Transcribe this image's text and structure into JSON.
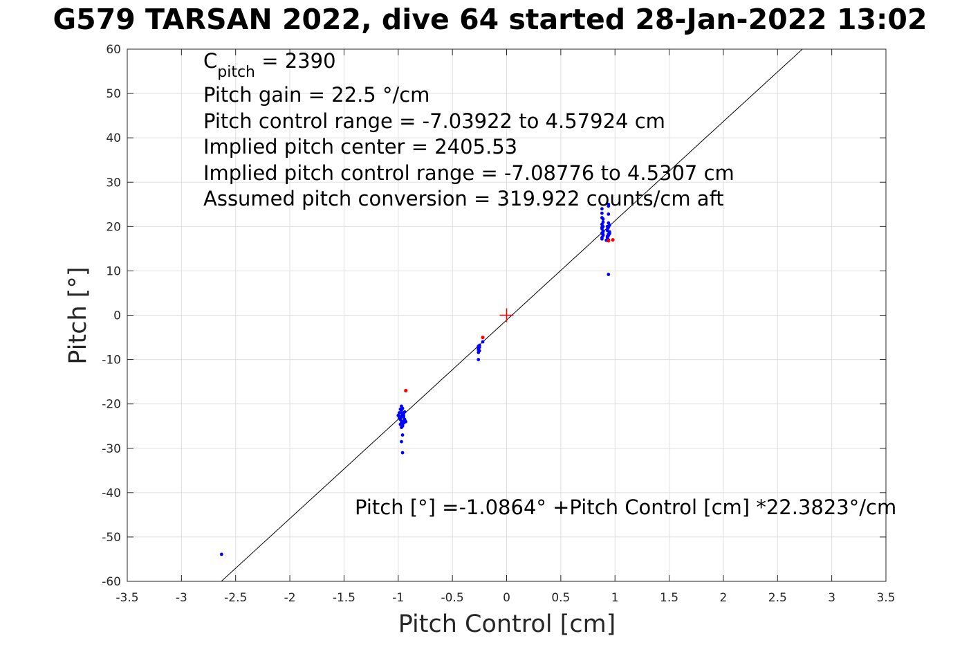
{
  "figure": {
    "title": "G579 TARSAN 2022, dive 64 started 28-Jan-2022 13:02"
  },
  "chart_data": {
    "type": "scatter",
    "title": "G579 TARSAN 2022, dive 64 started 28-Jan-2022 13:02",
    "xlabel": "Pitch Control [cm]",
    "ylabel": "Pitch [°]",
    "xlim": [
      -3.5,
      3.5
    ],
    "ylim": [
      -60,
      60
    ],
    "grid": true,
    "x_ticks": [
      -3.5,
      -3,
      -2.5,
      -2,
      -1.5,
      -1,
      -0.5,
      0,
      0.5,
      1,
      1.5,
      2,
      2.5,
      3,
      3.5
    ],
    "x_tick_labels": [
      "-3.5",
      "-3",
      "-2.5",
      "-2",
      "-1.5",
      "-1",
      "-0.5",
      "0",
      "0.5",
      "1",
      "1.5",
      "2",
      "2.5",
      "3",
      "3.5"
    ],
    "y_ticks": [
      -60,
      -50,
      -40,
      -30,
      -20,
      -10,
      0,
      10,
      20,
      30,
      40,
      50,
      60
    ],
    "y_tick_labels": [
      "-60",
      "-50",
      "-40",
      "-30",
      "-20",
      "-10",
      "0",
      "10",
      "20",
      "30",
      "40",
      "50",
      "60"
    ],
    "fit_line": {
      "intercept": -1.0864,
      "slope": 22.3823,
      "color": "#000000"
    },
    "center_marker": {
      "x": 0,
      "y": 0,
      "color": "#ff0000"
    },
    "series": [
      {
        "color": "#0000ff",
        "x": [
          -2.63,
          -0.97,
          -0.96,
          -0.95,
          -0.94,
          -0.93,
          -0.98,
          -0.99,
          -1.0,
          -0.97,
          -0.96,
          -0.95,
          -0.94,
          -0.98,
          -0.99,
          -0.96,
          -0.95,
          -0.94,
          -0.97,
          -0.98,
          -0.96,
          -0.95,
          -0.97,
          -0.96,
          -0.98,
          -0.97,
          -0.96,
          -0.97,
          -0.96,
          -0.97,
          -0.26,
          -0.26,
          -0.25,
          -0.26,
          -0.25,
          -0.26,
          -0.25,
          -0.26,
          -0.22,
          0.88,
          0.89,
          0.88,
          0.89,
          0.88,
          0.89,
          0.88,
          0.89,
          0.88,
          0.89,
          0.88,
          0.89,
          0.88,
          0.93,
          0.94,
          0.95,
          0.93,
          0.94,
          0.95,
          0.93,
          0.94,
          0.95,
          0.94,
          0.93,
          0.94,
          0.95,
          0.94,
          0.93,
          0.94,
          0.88,
          0.88,
          0.89,
          0.94,
          0.92,
          0.94
        ],
        "y": [
          -53.9,
          -22.0,
          -22.5,
          -23.0,
          -23.5,
          -24.0,
          -22.8,
          -23.2,
          -22.6,
          -21.5,
          -21.0,
          -24.3,
          -23.8,
          -24.6,
          -22.0,
          -25.0,
          -22.7,
          -21.8,
          -20.5,
          -23.5,
          -24.8,
          -22.2,
          -25.3,
          -23.9,
          -21.2,
          -22.9,
          -27.0,
          -28.5,
          -31.0,
          -24.1,
          -7.0,
          -7.5,
          -8.0,
          -7.8,
          -7.2,
          -8.4,
          -6.8,
          -10.0,
          -6.0,
          17.5,
          18.0,
          18.5,
          19.0,
          19.5,
          20.0,
          20.5,
          21.0,
          17.2,
          18.2,
          22.0,
          18.8,
          19.8,
          17.8,
          18.3,
          18.8,
          19.3,
          19.8,
          20.3,
          17.5,
          18.0,
          18.6,
          20.8,
          19.1,
          17.0,
          18.4,
          22.8,
          20.0,
          24.6,
          24.0,
          23.0,
          21.7,
          9.2,
          16.9,
          25.0
        ]
      },
      {
        "color": "#ff0000",
        "x": [
          -0.93,
          -0.22,
          0.94,
          0.98
        ],
        "y": [
          -17.0,
          -5.0,
          16.8,
          17.0
        ]
      }
    ],
    "annotations": {
      "c_pitch_base": "C",
      "c_pitch_sub": "pitch",
      "c_pitch_value": " = 2390",
      "pitch_gain": "Pitch gain = 22.5 °/cm",
      "control_range": "Pitch control range = -7.03922 to 4.57924 cm",
      "implied_center": "Implied pitch center = 2405.53",
      "implied_range": "Implied pitch control range = -7.08776 to 4.5307 cm",
      "conversion": "Assumed pitch conversion = 319.922 counts/cm aft",
      "fit_equation": "Pitch [°] =-1.0864° +Pitch Control [cm] *22.3823°/cm"
    }
  }
}
